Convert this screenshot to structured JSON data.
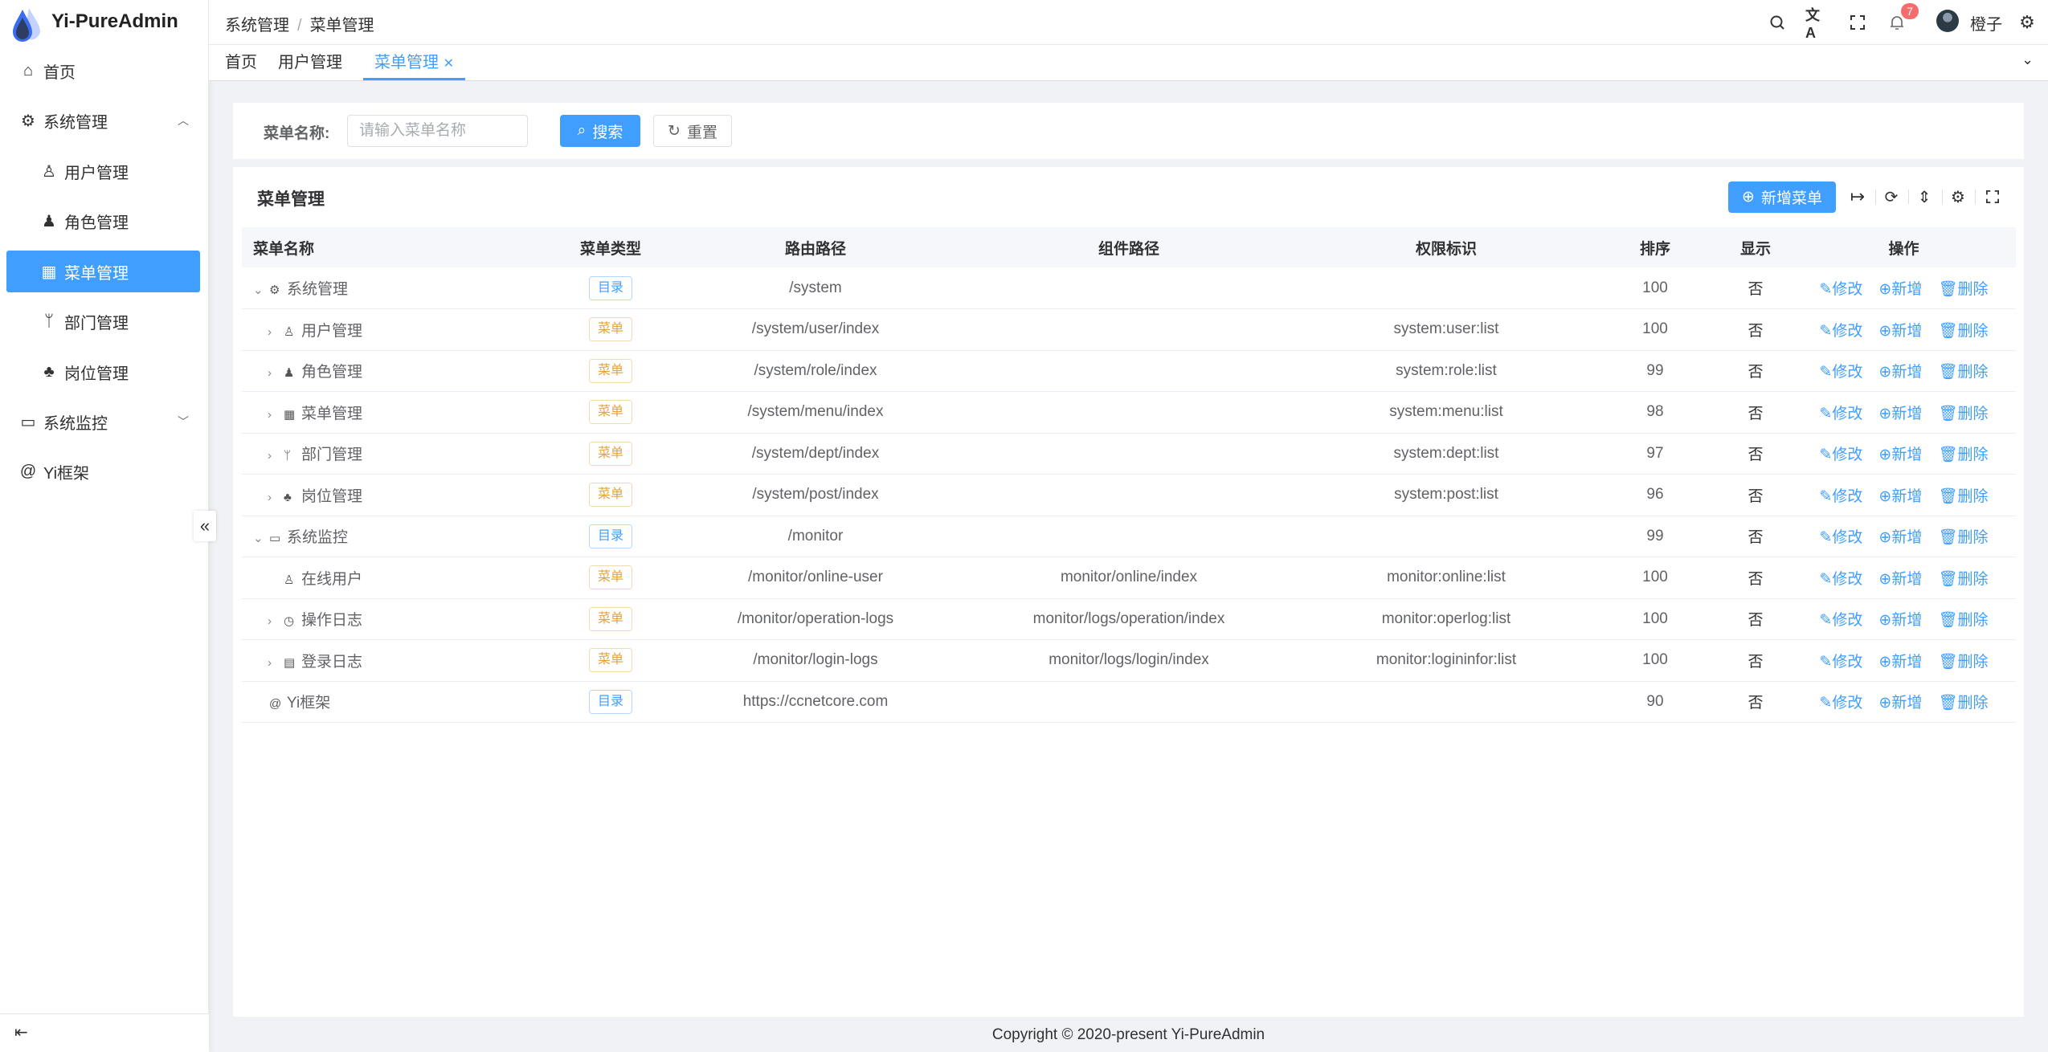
{
  "app": {
    "title": "Yi-PureAdmin"
  },
  "colors": {
    "primary": "#409eff",
    "warning": "#e6a23c",
    "danger_badge": "#f56c6c",
    "background": "#f0f2f5"
  },
  "sidebar": {
    "items": [
      {
        "label": "首页",
        "icon": "home-icon"
      },
      {
        "label": "系统管理",
        "icon": "gear-icon",
        "expanded": true
      },
      {
        "label": "用户管理",
        "icon": "user-icon"
      },
      {
        "label": "角色管理",
        "icon": "role-icon"
      },
      {
        "label": "菜单管理",
        "icon": "grid-icon",
        "active": true
      },
      {
        "label": "部门管理",
        "icon": "branch-icon"
      },
      {
        "label": "岗位管理",
        "icon": "tree-icon"
      },
      {
        "label": "系统监控",
        "icon": "monitor-icon",
        "expanded": false
      },
      {
        "label": "Yi框架",
        "icon": "at-icon"
      }
    ]
  },
  "header": {
    "breadcrumb": [
      "系统管理",
      "菜单管理"
    ],
    "notification_count": "7",
    "username": "橙子"
  },
  "tabs": [
    {
      "label": "首页"
    },
    {
      "label": "用户管理"
    },
    {
      "label": "菜单管理",
      "active": true
    }
  ],
  "search": {
    "label": "菜单名称:",
    "placeholder": "请输入菜单名称",
    "search_button": "搜索",
    "reset_button": "重置"
  },
  "table_card": {
    "title": "菜单管理",
    "add_button": "新增菜单"
  },
  "table": {
    "columns": [
      "菜单名称",
      "菜单类型",
      "路由路径",
      "组件路径",
      "权限标识",
      "排序",
      "显示",
      "操作"
    ],
    "actions": [
      "修改",
      "新增",
      "删除"
    ],
    "rows": [
      {
        "name": "系统管理",
        "level": 0,
        "expand": "down",
        "icon": "⚙",
        "type": "目录",
        "kind": "dir",
        "route": "/system",
        "component": "",
        "perm": "",
        "order": "100",
        "show": "否"
      },
      {
        "name": "用户管理",
        "level": 1,
        "expand": "right",
        "icon": "♙",
        "type": "菜单",
        "kind": "menu",
        "route": "/system/user/index",
        "component": "",
        "perm": "system:user:list",
        "order": "100",
        "show": "否"
      },
      {
        "name": "角色管理",
        "level": 1,
        "expand": "right",
        "icon": "♟",
        "type": "菜单",
        "kind": "menu",
        "route": "/system/role/index",
        "component": "",
        "perm": "system:role:list",
        "order": "99",
        "show": "否"
      },
      {
        "name": "菜单管理",
        "level": 1,
        "expand": "right",
        "icon": "▦",
        "type": "菜单",
        "kind": "menu",
        "route": "/system/menu/index",
        "component": "",
        "perm": "system:menu:list",
        "order": "98",
        "show": "否"
      },
      {
        "name": "部门管理",
        "level": 1,
        "expand": "right",
        "icon": "ᛘ",
        "type": "菜单",
        "kind": "menu",
        "route": "/system/dept/index",
        "component": "",
        "perm": "system:dept:list",
        "order": "97",
        "show": "否"
      },
      {
        "name": "岗位管理",
        "level": 1,
        "expand": "right",
        "icon": "♣",
        "type": "菜单",
        "kind": "menu",
        "route": "/system/post/index",
        "component": "",
        "perm": "system:post:list",
        "order": "96",
        "show": "否"
      },
      {
        "name": "系统监控",
        "level": 0,
        "expand": "down",
        "icon": "▭",
        "type": "目录",
        "kind": "dir",
        "route": "/monitor",
        "component": "",
        "perm": "",
        "order": "99",
        "show": "否"
      },
      {
        "name": "在线用户",
        "level": 1,
        "expand": "",
        "icon": "♙",
        "type": "菜单",
        "kind": "menu",
        "route": "/monitor/online-user",
        "component": "monitor/online/index",
        "perm": "monitor:online:list",
        "order": "100",
        "show": "否"
      },
      {
        "name": "操作日志",
        "level": 1,
        "expand": "right",
        "icon": "◷",
        "type": "菜单",
        "kind": "menu",
        "route": "/monitor/operation-logs",
        "component": "monitor/logs/operation/index",
        "perm": "monitor:operlog:list",
        "order": "100",
        "show": "否"
      },
      {
        "name": "登录日志",
        "level": 1,
        "expand": "right",
        "icon": "▤",
        "type": "菜单",
        "kind": "menu",
        "route": "/monitor/login-logs",
        "component": "monitor/logs/login/index",
        "perm": "monitor:logininfor:list",
        "order": "100",
        "show": "否"
      },
      {
        "name": "Yi框架",
        "level": 0,
        "expand": "",
        "icon": "@",
        "type": "目录",
        "kind": "dir",
        "route": "https://ccnetcore.com",
        "component": "",
        "perm": "",
        "order": "90",
        "show": "否"
      }
    ]
  },
  "footer": {
    "text": "Copyright © 2020-present Yi-PureAdmin"
  }
}
